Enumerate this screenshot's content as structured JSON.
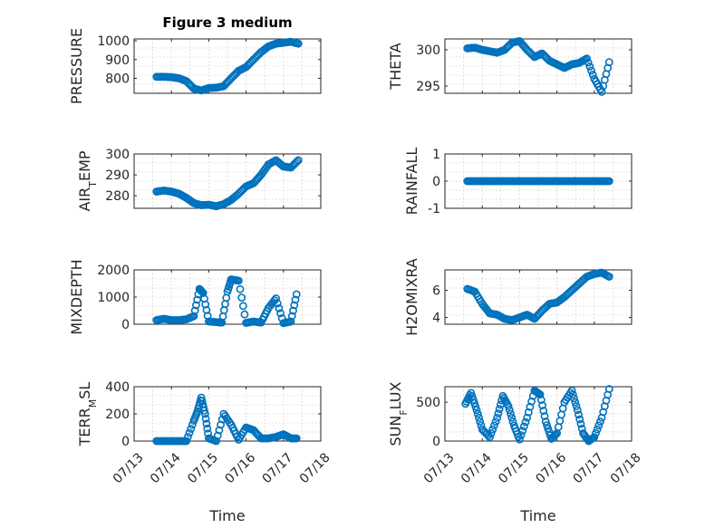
{
  "figure": {
    "title": "Figure 3 medium"
  },
  "colors": {
    "marker": "#0072BD",
    "axis": "#262626",
    "grid": "#cfcfcf"
  },
  "chart_data": [
    {
      "type": "scatter",
      "id": "pressure",
      "ylabel": "PRESSURE",
      "title": "Figure 3 medium",
      "xlim": [
        0,
        5
      ],
      "ylim": [
        720,
        1010
      ],
      "yticks": [
        800,
        900,
        1000
      ],
      "grid": true,
      "x": [
        0.6,
        0.8,
        1.0,
        1.2,
        1.4,
        1.6,
        1.8,
        2.0,
        2.2,
        2.4,
        2.6,
        2.8,
        3.0,
        3.2,
        3.4,
        3.6,
        3.8,
        4.0,
        4.2,
        4.4
      ],
      "y": [
        808,
        808,
        806,
        800,
        785,
        745,
        735,
        748,
        750,
        758,
        800,
        840,
        860,
        900,
        940,
        970,
        985,
        990,
        995,
        985
      ]
    },
    {
      "type": "scatter",
      "id": "theta",
      "ylabel": "THETA",
      "xlim": [
        0,
        5
      ],
      "ylim": [
        294,
        301.5
      ],
      "yticks": [
        295,
        300
      ],
      "grid": true,
      "x": [
        0.6,
        0.8,
        1.0,
        1.2,
        1.4,
        1.6,
        1.8,
        2.0,
        2.2,
        2.4,
        2.6,
        2.8,
        3.0,
        3.2,
        3.4,
        3.6,
        3.8,
        4.0,
        4.2,
        4.4
      ],
      "y": [
        300.2,
        300.3,
        300,
        299.8,
        299.6,
        300,
        301,
        301.2,
        300,
        299,
        299.5,
        298.5,
        298,
        297.5,
        298,
        298.2,
        298.8,
        296,
        294.2,
        298.3
      ]
    },
    {
      "type": "scatter",
      "id": "air_temp",
      "ylabel": "AIR_TEMP",
      "ylabel_main": "AIR",
      "ylabel_sub": "T",
      "ylabel_rest": "EMP",
      "xlim": [
        0,
        5
      ],
      "ylim": [
        274,
        300
      ],
      "yticks": [
        280,
        290,
        300
      ],
      "grid": true,
      "x": [
        0.6,
        0.8,
        1.0,
        1.2,
        1.4,
        1.6,
        1.8,
        2.0,
        2.2,
        2.4,
        2.6,
        2.8,
        3.0,
        3.2,
        3.4,
        3.6,
        3.8,
        4.0,
        4.2,
        4.4
      ],
      "y": [
        282,
        282.5,
        282,
        281,
        279,
        276.5,
        275.5,
        275.7,
        275,
        276,
        278,
        281,
        284.5,
        286,
        290,
        295,
        297,
        294,
        293.5,
        297
      ]
    },
    {
      "type": "scatter",
      "id": "rainfall",
      "ylabel": "RAINFALL",
      "xlim": [
        0,
        5
      ],
      "ylim": [
        -1,
        1
      ],
      "yticks": [
        -1,
        0,
        1
      ],
      "grid": true,
      "x": [
        0.6,
        0.8,
        1.0,
        1.2,
        1.4,
        1.6,
        1.8,
        2.0,
        2.2,
        2.4,
        2.6,
        2.8,
        3.0,
        3.2,
        3.4,
        3.6,
        3.8,
        4.0,
        4.2,
        4.4
      ],
      "y": [
        0,
        0,
        0,
        0,
        0,
        0,
        0,
        0,
        0,
        0,
        0,
        0,
        0,
        0,
        0,
        0,
        0,
        0,
        0,
        0
      ]
    },
    {
      "type": "scatter",
      "id": "mixdepth",
      "ylabel": "MIXDEPTH",
      "xlim": [
        0,
        5
      ],
      "ylim": [
        0,
        2000
      ],
      "yticks": [
        0,
        1000,
        2000
      ],
      "grid": true,
      "x": [
        0.6,
        0.8,
        1.0,
        1.2,
        1.4,
        1.6,
        1.75,
        1.85,
        2.0,
        2.2,
        2.35,
        2.5,
        2.6,
        2.8,
        3.0,
        3.2,
        3.4,
        3.6,
        3.8,
        4.0,
        4.2,
        4.35
      ],
      "y": [
        150,
        200,
        150,
        150,
        180,
        300,
        1300,
        1150,
        100,
        80,
        60,
        1200,
        1650,
        1600,
        50,
        100,
        60,
        600,
        950,
        40,
        100,
        1100
      ]
    },
    {
      "type": "scatter",
      "id": "h2omixra",
      "ylabel": "H2OMIXRA",
      "xlim": [
        0,
        5
      ],
      "ylim": [
        3.5,
        7.5
      ],
      "yticks": [
        4,
        6
      ],
      "grid": true,
      "x": [
        0.6,
        0.8,
        1.0,
        1.2,
        1.4,
        1.6,
        1.8,
        2.0,
        2.2,
        2.4,
        2.6,
        2.8,
        3.0,
        3.2,
        3.4,
        3.6,
        3.8,
        4.0,
        4.2,
        4.4
      ],
      "y": [
        6.1,
        5.9,
        5,
        4.3,
        4.2,
        3.9,
        3.8,
        4,
        4.2,
        3.9,
        4.5,
        5,
        5.1,
        5.5,
        6,
        6.5,
        7,
        7.2,
        7.3,
        7
      ]
    },
    {
      "type": "scatter",
      "id": "terr_msl",
      "ylabel": "TERR_MSL",
      "ylabel_main": "TERR",
      "ylabel_sub": "M",
      "ylabel_rest": "SL",
      "xlim": [
        0,
        5
      ],
      "ylim": [
        0,
        400
      ],
      "yticks": [
        0,
        200,
        400
      ],
      "grid": true,
      "x": [
        0.6,
        0.8,
        1.0,
        1.2,
        1.4,
        1.6,
        1.7,
        1.8,
        1.9,
        2.0,
        2.2,
        2.4,
        2.6,
        2.8,
        3.0,
        3.2,
        3.4,
        3.6,
        3.8,
        4.0,
        4.2,
        4.35
      ],
      "y": [
        0,
        0,
        0,
        0,
        0,
        150,
        220,
        320,
        200,
        20,
        0,
        200,
        120,
        10,
        100,
        80,
        20,
        20,
        30,
        50,
        20,
        20
      ]
    },
    {
      "type": "scatter",
      "id": "sun_flux",
      "ylabel": "SUN_FLUX",
      "ylabel_main": "SUN",
      "ylabel_sub": "F",
      "ylabel_rest": "LUX",
      "xlim": [
        0,
        5
      ],
      "ylim": [
        0,
        700
      ],
      "yticks": [
        0,
        500
      ],
      "grid": true,
      "x": [
        0.55,
        0.7,
        0.85,
        1.0,
        1.2,
        1.4,
        1.55,
        1.7,
        1.85,
        2.0,
        2.2,
        2.4,
        2.55,
        2.7,
        2.85,
        3.0,
        3.2,
        3.4,
        3.55,
        3.7,
        3.85,
        4.0,
        4.2,
        4.4
      ],
      "y": [
        480,
        620,
        400,
        150,
        50,
        300,
        580,
        450,
        200,
        20,
        300,
        650,
        600,
        250,
        30,
        100,
        500,
        650,
        400,
        100,
        0,
        50,
        300,
        670
      ]
    }
  ],
  "x_axis": {
    "tick_labels": [
      "07/13",
      "07/14",
      "07/15",
      "07/16",
      "07/17",
      "07/18"
    ],
    "label": "Time"
  }
}
